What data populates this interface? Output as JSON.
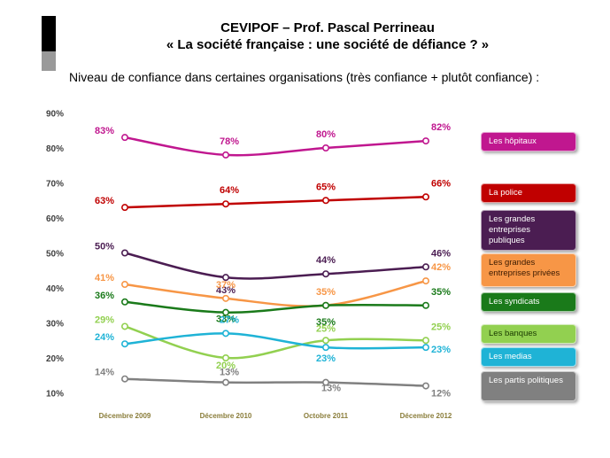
{
  "header": {
    "title_line1": "CEVIPOF – Prof. Pascal Perrineau",
    "title_line2": "« La société française : une société de défiance ? »",
    "subtitle": "Niveau de confiance dans certaines organisations (très confiance + plutôt confiance) :"
  },
  "chart_data": {
    "type": "line",
    "x": [
      "Décembre 2009",
      "Décembre 2010",
      "Octobre 2011",
      "Décembre 2012"
    ],
    "yticks": [
      "10%",
      "20%",
      "30%",
      "40%",
      "50%",
      "60%",
      "70%",
      "80%",
      "90%"
    ],
    "ylim": [
      10,
      90
    ],
    "grid": false,
    "legend_position": "right",
    "series": [
      {
        "name": "Les hôpitaux",
        "color": "#c0178f",
        "values": [
          83,
          78,
          80,
          82
        ],
        "labels": [
          "83%",
          "78%",
          "80%",
          "82%"
        ]
      },
      {
        "name": "La police",
        "color": "#c00000",
        "values": [
          63,
          64,
          65,
          66
        ],
        "labels": [
          "63%",
          "64%",
          "65%",
          "66%"
        ]
      },
      {
        "name": "Les grandes entreprises publiques",
        "color": "#4b1d52",
        "values": [
          50,
          43,
          44,
          46
        ],
        "labels": [
          "50%",
          "43%",
          "44%",
          "46%"
        ]
      },
      {
        "name": "Les grandes entreprises privées",
        "color": "#f79646",
        "values": [
          41,
          37,
          35,
          42
        ],
        "labels": [
          "41%",
          "37%",
          "35%",
          "42%"
        ]
      },
      {
        "name": "Les syndicats",
        "color": "#1a7a1a",
        "values": [
          36,
          33,
          35,
          35
        ],
        "labels": [
          "36%",
          "33%",
          "35%",
          "35%"
        ]
      },
      {
        "name": "Les banques",
        "color": "#92d050",
        "values": [
          29,
          20,
          25,
          25
        ],
        "labels": [
          "29%",
          "20%",
          "25%",
          "25%"
        ]
      },
      {
        "name": "Les medias",
        "color": "#1fb3d6",
        "values": [
          24,
          27,
          23,
          23
        ],
        "labels": [
          "24%",
          "27%",
          "23%",
          "23%"
        ]
      },
      {
        "name": "Les partis politiques",
        "color": "#808080",
        "values": [
          14,
          13,
          13,
          12
        ],
        "labels": [
          "14%",
          "13%",
          "13%",
          "12%"
        ]
      }
    ]
  }
}
